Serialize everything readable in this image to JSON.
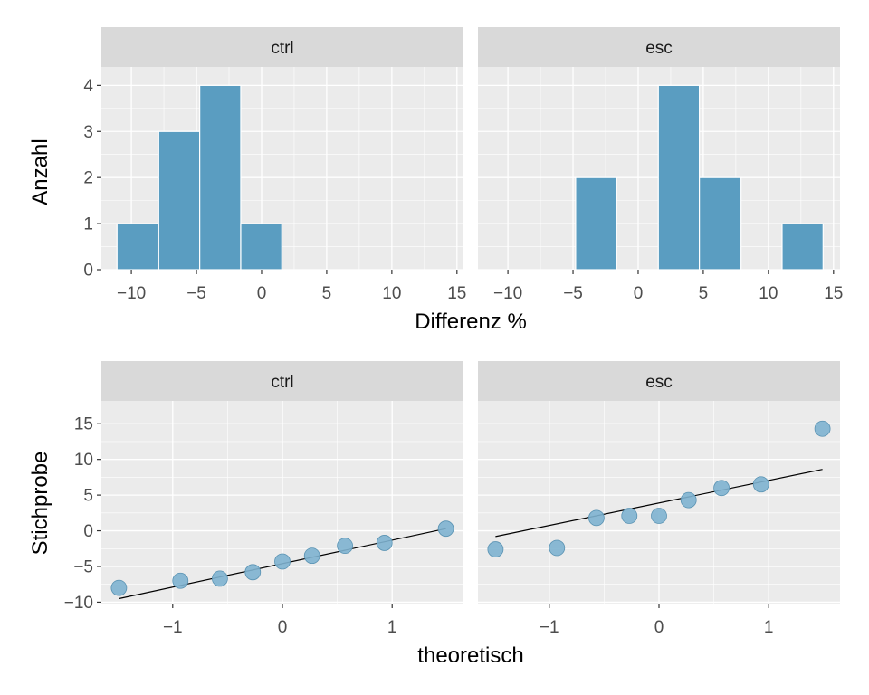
{
  "chart_data": [
    {
      "type": "bar",
      "subtype": "histogram",
      "xlabel": "Differenz %",
      "ylabel": "Anzahl",
      "x_ticks": [
        -10,
        -5,
        0,
        5,
        10,
        15
      ],
      "y_ticks": [
        0,
        1,
        2,
        3,
        4
      ],
      "xlim": [
        -12.3,
        15.5
      ],
      "ylim": [
        0,
        4.4
      ],
      "grid": true,
      "bar_color": "#5A9DC1",
      "bar_edge_color": "#FFFFFF",
      "panel_background": "#EBEBEB",
      "strip_background": "#D9D9D9",
      "panels": [
        {
          "label": "ctrl",
          "bins": [
            {
              "x0": -11.1,
              "x1": -7.9,
              "count": 1
            },
            {
              "x0": -7.9,
              "x1": -4.75,
              "count": 3
            },
            {
              "x0": -4.75,
              "x1": -1.6,
              "count": 4
            },
            {
              "x0": -1.6,
              "x1": 1.55,
              "count": 1
            }
          ]
        },
        {
          "label": "esc",
          "bins": [
            {
              "x0": -4.8,
              "x1": -1.65,
              "count": 2
            },
            {
              "x0": 1.55,
              "x1": 4.7,
              "count": 4
            },
            {
              "x0": 4.7,
              "x1": 7.9,
              "count": 2
            },
            {
              "x0": 11.05,
              "x1": 14.2,
              "count": 1
            }
          ]
        }
      ]
    },
    {
      "type": "scatter",
      "subtype": "qq-plot",
      "xlabel": "theoretisch",
      "ylabel": "Stichprobe",
      "x_ticks": [
        -1,
        0,
        1
      ],
      "y_ticks": [
        -10,
        -5,
        0,
        5,
        10,
        15
      ],
      "xlim": [
        -1.65,
        1.65
      ],
      "ylim": [
        -10.2,
        18.2
      ],
      "grid": true,
      "point_color": "#7EB3D0",
      "line_color": "#000000",
      "panels": [
        {
          "label": "ctrl",
          "points": [
            {
              "x": -1.49,
              "y": -8.0
            },
            {
              "x": -0.93,
              "y": -7.0
            },
            {
              "x": -0.57,
              "y": -6.7
            },
            {
              "x": -0.27,
              "y": -5.8
            },
            {
              "x": 0.0,
              "y": -4.3
            },
            {
              "x": 0.27,
              "y": -3.5
            },
            {
              "x": 0.57,
              "y": -2.1
            },
            {
              "x": 0.93,
              "y": -1.7
            },
            {
              "x": 1.49,
              "y": 0.3
            }
          ],
          "ref_line": [
            [
              -1.49,
              -9.5
            ],
            [
              1.49,
              0.3
            ]
          ]
        },
        {
          "label": "esc",
          "points": [
            {
              "x": -1.49,
              "y": -2.6
            },
            {
              "x": -0.93,
              "y": -2.4
            },
            {
              "x": -0.57,
              "y": 1.8
            },
            {
              "x": -0.27,
              "y": 2.1
            },
            {
              "x": 0.0,
              "y": 2.1
            },
            {
              "x": 0.27,
              "y": 4.3
            },
            {
              "x": 0.57,
              "y": 6.0
            },
            {
              "x": 0.93,
              "y": 6.5
            },
            {
              "x": 1.49,
              "y": 14.3
            }
          ],
          "ref_line": [
            [
              -1.49,
              -0.8
            ],
            [
              1.49,
              8.6
            ]
          ]
        }
      ]
    }
  ]
}
